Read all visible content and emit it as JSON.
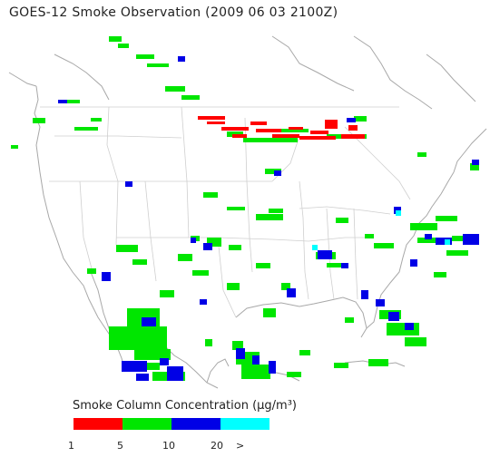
{
  "title": "GOES-12 Smoke Observation (2009 06 03  2100Z)",
  "legend": {
    "title": "Smoke Column Concentration (μg/m³)",
    "colors": [
      "#ff0000",
      "#00e600",
      "#0000e6",
      "#00ffff"
    ],
    "ticks": [
      "1",
      "5",
      "10",
      "20",
      ">"
    ]
  },
  "map": {
    "region": "Contiguous United States, southern Canada, northern Mexico",
    "land_color": "#ffffff",
    "boundary_color": "#b4b4b4"
  }
}
